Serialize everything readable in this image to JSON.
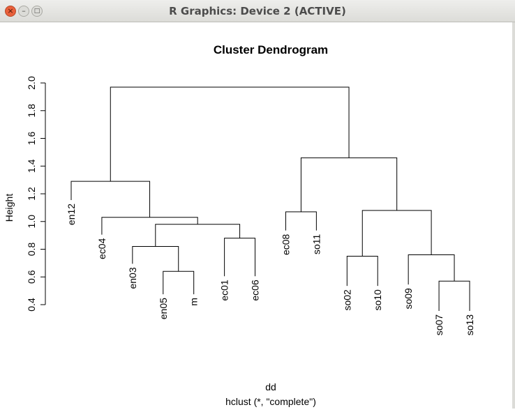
{
  "window": {
    "title": "R Graphics: Device 2 (ACTIVE)",
    "buttons": {
      "close": "×",
      "minimize": "–",
      "maximize": "□"
    }
  },
  "chart_data": {
    "type": "dendrogram",
    "title": "Cluster Dendrogram",
    "xlabel": "dd",
    "sublabel": "hclust (*, \"complete\")",
    "ylabel": "Height",
    "ylim": [
      0.4,
      2.0
    ],
    "yticks": [
      "0.4",
      "0.6",
      "0.8",
      "1.0",
      "1.2",
      "1.4",
      "1.6",
      "1.8",
      "2.0"
    ],
    "leaves": [
      "en12",
      "ec04",
      "en03",
      "en05",
      "m",
      "ec01",
      "ec06",
      "ec08",
      "so11",
      "so02",
      "so10",
      "so09",
      "so07",
      "so13"
    ],
    "merges": [
      {
        "left": "en05",
        "right": "m",
        "height": 0.64
      },
      {
        "left": "en03",
        "right": 1,
        "height": 0.82
      },
      {
        "left": "ec01",
        "right": "ec06",
        "height": 0.88
      },
      {
        "left": 2,
        "right": 3,
        "height": 0.98
      },
      {
        "left": "ec04",
        "right": 4,
        "height": 1.03
      },
      {
        "left": "en12",
        "right": 5,
        "height": 1.29
      },
      {
        "left": "ec08",
        "right": "so11",
        "height": 1.07
      },
      {
        "left": "so02",
        "right": "so10",
        "height": 0.75
      },
      {
        "left": "so07",
        "right": "so13",
        "height": 0.57
      },
      {
        "left": "so09",
        "right": 9,
        "height": 0.76
      },
      {
        "left": 8,
        "right": 10,
        "height": 1.08
      },
      {
        "left": 7,
        "right": 11,
        "height": 1.46
      },
      {
        "left": 6,
        "right": 12,
        "height": 1.97
      }
    ],
    "leaf_label_tops": {
      "en12": 1.15,
      "ec04": 0.9,
      "en03": 0.69,
      "en05": 0.47,
      "m": 0.47,
      "ec01": 0.6,
      "ec06": 0.6,
      "ec08": 0.93,
      "so11": 0.93,
      "so02": 0.53,
      "so10": 0.53,
      "so09": 0.54,
      "so07": 0.35,
      "so13": 0.35
    }
  }
}
